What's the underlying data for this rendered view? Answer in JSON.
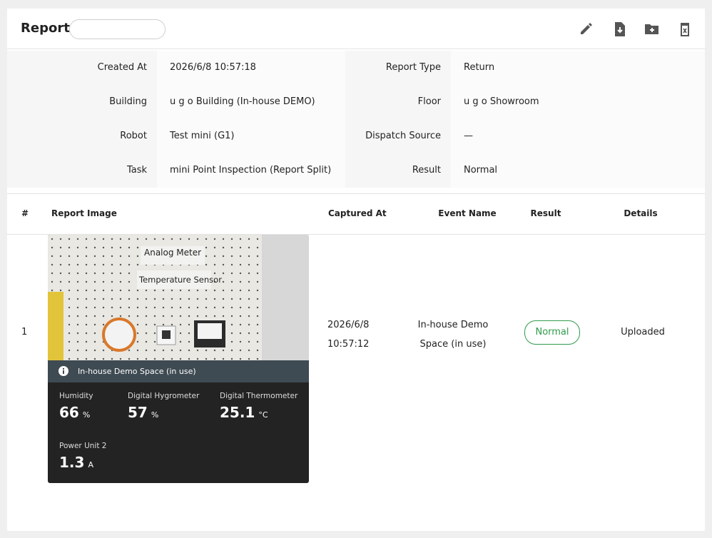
{
  "header": {
    "title": "Report:"
  },
  "info": [
    {
      "label": "Created At",
      "value": "2026/6/8 10:57:18"
    },
    {
      "label": "Report Type",
      "value": "Return"
    },
    {
      "label": "Building",
      "value": "u g o Building (In-house DEMO)"
    },
    {
      "label": "Floor",
      "value": "u g o Showroom"
    },
    {
      "label": "Robot",
      "value": "Test mini (G1)"
    },
    {
      "label": "Dispatch Source",
      "value": "—"
    },
    {
      "label": "Task",
      "value": "mini Point Inspection (Report Split)"
    },
    {
      "label": "Result",
      "value": "Normal"
    }
  ],
  "table": {
    "headers": [
      "#",
      "Report Image",
      "Captured At",
      "Event Name",
      "Result",
      "Details"
    ],
    "rows": [
      {
        "index": "1",
        "captured_date": "2026/6/8",
        "captured_time": "10:57:12",
        "event_name": "In-house Demo Space (in use)",
        "result": "Normal",
        "details": "Uploaded",
        "image": {
          "labels": [
            "Analog Meter",
            "Temperature Sensor"
          ],
          "caption": "In-house Demo Space (in use)",
          "readings": [
            {
              "name": "Humidity",
              "value": "66",
              "unit": "%"
            },
            {
              "name": "Digital Hygrometer",
              "value": "57",
              "unit": "%"
            },
            {
              "name": "Digital Thermometer",
              "value": "25.1",
              "unit": "°C"
            },
            {
              "name": "Power Unit 2",
              "value": "1.3",
              "unit": "A"
            }
          ]
        }
      }
    ]
  }
}
